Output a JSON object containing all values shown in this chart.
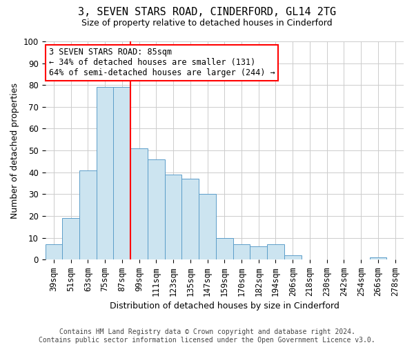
{
  "title": "3, SEVEN STARS ROAD, CINDERFORD, GL14 2TG",
  "subtitle": "Size of property relative to detached houses in Cinderford",
  "xlabel": "Distribution of detached houses by size in Cinderford",
  "ylabel": "Number of detached properties",
  "annotation_line1": "3 SEVEN STARS ROAD: 85sqm",
  "annotation_line2": "← 34% of detached houses are smaller (131)",
  "annotation_line3": "64% of semi-detached houses are larger (244) →",
  "footer_line1": "Contains HM Land Registry data © Crown copyright and database right 2024.",
  "footer_line2": "Contains public sector information licensed under the Open Government Licence v3.0.",
  "categories": [
    "39sqm",
    "51sqm",
    "63sqm",
    "75sqm",
    "87sqm",
    "99sqm",
    "111sqm",
    "123sqm",
    "135sqm",
    "147sqm",
    "159sqm",
    "170sqm",
    "182sqm",
    "194sqm",
    "206sqm",
    "218sqm",
    "230sqm",
    "242sqm",
    "254sqm",
    "266sqm",
    "278sqm"
  ],
  "values": [
    7,
    19,
    41,
    79,
    79,
    51,
    46,
    39,
    37,
    30,
    10,
    7,
    6,
    7,
    2,
    0,
    0,
    0,
    0,
    1,
    0
  ],
  "bar_color": "#cce4f0",
  "bar_edge_color": "#5b9dc9",
  "grid_color": "#cccccc",
  "vline_x": 4.5,
  "vline_color": "red",
  "ylim": [
    0,
    100
  ],
  "yticks": [
    0,
    10,
    20,
    30,
    40,
    50,
    60,
    70,
    80,
    90,
    100
  ],
  "background_color": "#ffffff",
  "title_fontsize": 11,
  "subtitle_fontsize": 9,
  "ylabel_fontsize": 9,
  "xlabel_fontsize": 9,
  "tick_fontsize": 8.5,
  "annotation_fontsize": 8.5,
  "footer_fontsize": 7
}
